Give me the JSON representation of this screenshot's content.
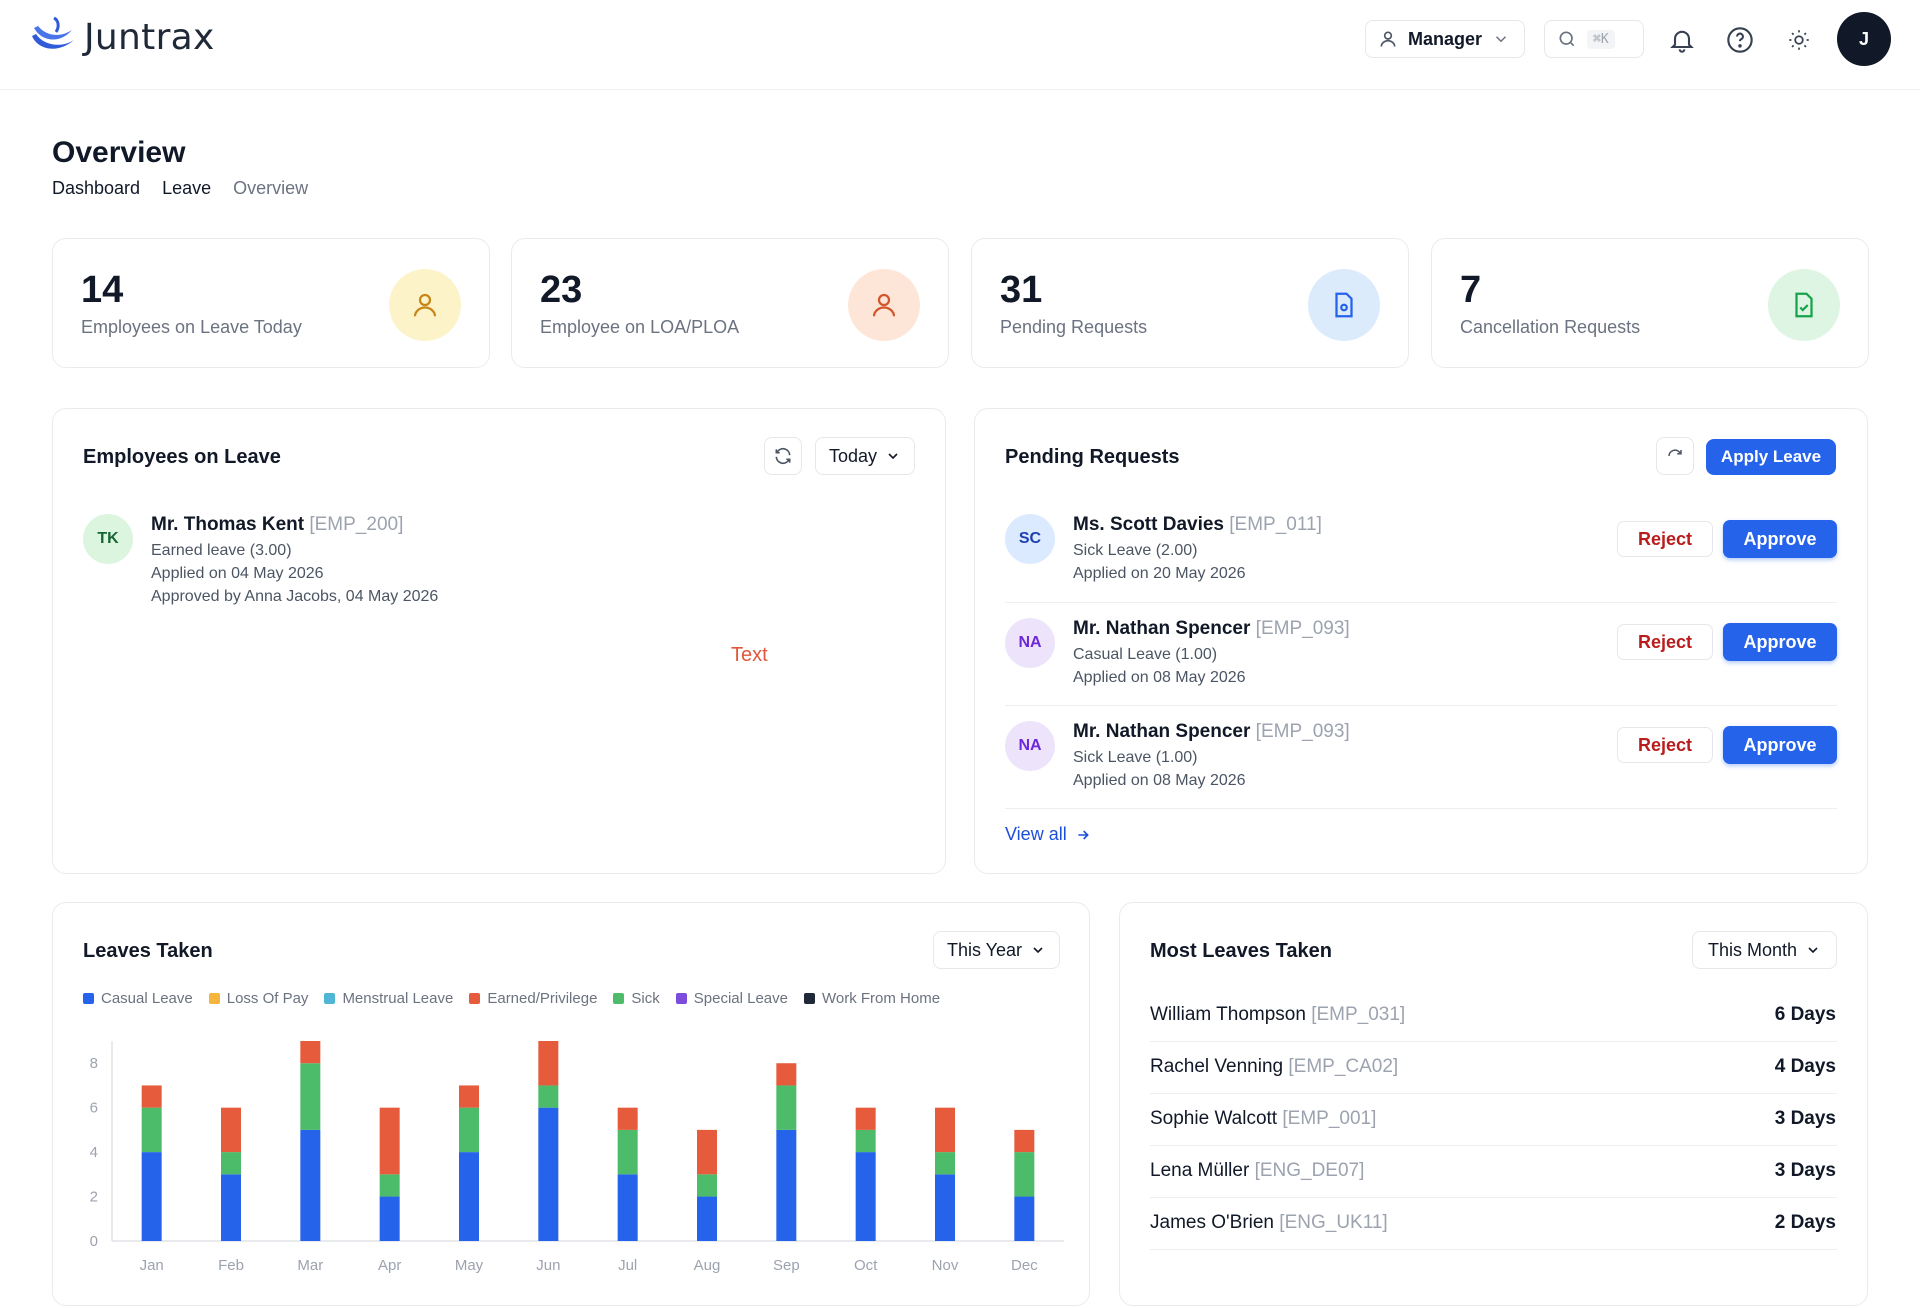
{
  "app": {
    "name": "Juntrax"
  },
  "header": {
    "role_label": "Manager",
    "search_shortcut": "⌘K",
    "avatar_initial": "J"
  },
  "page": {
    "title": "Overview",
    "breadcrumb": [
      "Dashboard",
      "Leave",
      "Overview"
    ]
  },
  "stats": [
    {
      "value": "14",
      "label": "Employees on Leave Today",
      "icon": "user-icon",
      "color": "#f59e0b"
    },
    {
      "value": "23",
      "label": "Employee on LOA/PLOA",
      "icon": "user-icon",
      "color": "#ea580c"
    },
    {
      "value": "31",
      "label": "Pending Requests",
      "icon": "document-icon",
      "color": "#2563eb"
    },
    {
      "value": "7",
      "label": "Cancellation Requests",
      "icon": "document-check-icon",
      "color": "#16a34a"
    }
  ],
  "employees_on_leave": {
    "title": "Employees on Leave",
    "filter": "Today",
    "items": [
      {
        "initials": "TK",
        "name": "Mr. Thomas Kent",
        "emp_id": "[EMP_200]",
        "leave_type": "Earned leave (3.00)",
        "applied": "Applied on 04 May 2026",
        "approved": "Approved by Anna Jacobs, 04 May 2026"
      }
    ],
    "stray_text": "Text"
  },
  "pending_requests": {
    "title": "Pending Requests",
    "apply_label": "Apply Leave",
    "reject_label": "Reject",
    "approve_label": "Approve",
    "view_all": "View all",
    "items": [
      {
        "initials": "SC",
        "name": "Ms. Scott Davies",
        "emp_id": "[EMP_011]",
        "leave_type": "Sick Leave (2.00)",
        "applied": "Applied on 20 May 2026"
      },
      {
        "initials": "NA",
        "name": "Mr. Nathan Spencer",
        "emp_id": "[EMP_093]",
        "leave_type": "Casual Leave (1.00)",
        "applied": "Applied on 08 May 2026"
      },
      {
        "initials": "NA",
        "name": "Mr. Nathan Spencer",
        "emp_id": "[EMP_093]",
        "leave_type": "Sick Leave (1.00)",
        "applied": "Applied on 08 May 2026"
      }
    ]
  },
  "leaves_taken": {
    "title": "Leaves Taken",
    "filter": "This Year"
  },
  "chart_data": {
    "type": "bar",
    "stacked": true,
    "title": "",
    "xlabel": "",
    "ylabel": "",
    "ylim": [
      0,
      9
    ],
    "yticks": [
      0,
      2,
      4,
      6,
      8
    ],
    "grid": false,
    "legend_position": "top",
    "categories": [
      "Jan",
      "Feb",
      "Mar",
      "Apr",
      "May",
      "Jun",
      "Jul",
      "Aug",
      "Sep",
      "Oct",
      "Nov",
      "Dec"
    ],
    "legend": [
      {
        "name": "Casual Leave",
        "color": "#2563eb"
      },
      {
        "name": "Loss Of Pay",
        "color": "#f5b43c"
      },
      {
        "name": "Menstrual Leave",
        "color": "#4fb6d6"
      },
      {
        "name": "Earned/Privilege",
        "color": "#e55b3c"
      },
      {
        "name": "Sick",
        "color": "#4cbb6a"
      },
      {
        "name": "Special Leave",
        "color": "#7c4ddb"
      },
      {
        "name": "Work From Home",
        "color": "#1f2937"
      }
    ],
    "series": [
      {
        "name": "Casual Leave",
        "color": "#2563eb",
        "values": [
          4,
          3,
          5,
          2,
          4,
          6,
          3,
          2,
          5,
          4,
          3,
          2
        ]
      },
      {
        "name": "Sick",
        "color": "#4cbb6a",
        "values": [
          2,
          1,
          3,
          1,
          2,
          1,
          2,
          1,
          2,
          1,
          1,
          2
        ]
      },
      {
        "name": "Earned/Privilege",
        "color": "#e55b3c",
        "values": [
          1,
          2,
          1,
          3,
          1,
          2,
          1,
          2,
          1,
          1,
          2,
          1
        ]
      }
    ]
  },
  "most_leaves": {
    "title": "Most Leaves Taken",
    "filter": "This Month",
    "items": [
      {
        "name": "William Thompson",
        "emp_id": "[EMP_031]",
        "days": "6 Days"
      },
      {
        "name": "Rachel Venning",
        "emp_id": "[EMP_CA02]",
        "days": "4 Days"
      },
      {
        "name": "Sophie Walcott",
        "emp_id": "[EMP_001]",
        "days": "3 Days"
      },
      {
        "name": "Lena Müller",
        "emp_id": "[ENG_DE07]",
        "days": "3 Days"
      },
      {
        "name": "James O'Brien",
        "emp_id": "[ENG_UK11]",
        "days": "2 Days"
      }
    ]
  }
}
